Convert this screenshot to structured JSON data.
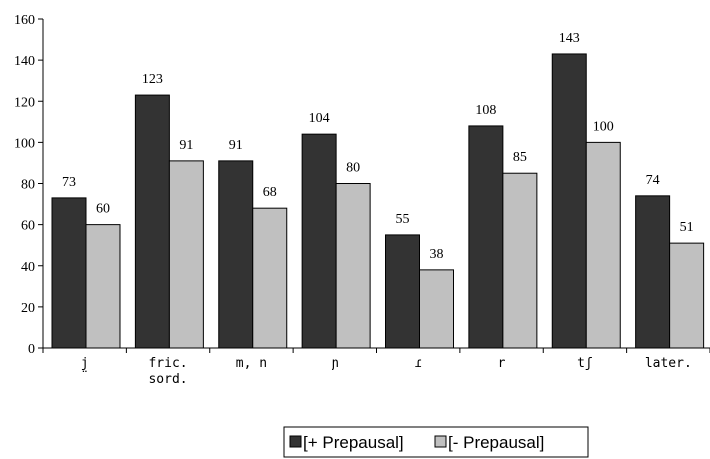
{
  "chart_data": {
    "type": "bar",
    "categories": [
      [
        "j̤"
      ],
      [
        "fric.",
        "sord."
      ],
      [
        "m, n"
      ],
      [
        "ɲ"
      ],
      [
        "ɾ"
      ],
      [
        "r"
      ],
      [
        "tʃ"
      ],
      [
        "later."
      ]
    ],
    "series": [
      {
        "name": "[+ Prepausal]",
        "values": [
          73,
          123,
          91,
          104,
          55,
          108,
          143,
          74
        ],
        "color": "#333333"
      },
      {
        "name": "[- Prepausal]",
        "values": [
          60,
          91,
          68,
          80,
          38,
          85,
          100,
          51
        ],
        "color": "#c0c0c0"
      }
    ],
    "ylim": [
      0,
      160
    ],
    "yticks": [
      0,
      20,
      40,
      60,
      80,
      100,
      120,
      140,
      160
    ],
    "title": "",
    "xlabel": "",
    "ylabel": "",
    "grid": false,
    "legend_position": "bottom-center"
  }
}
